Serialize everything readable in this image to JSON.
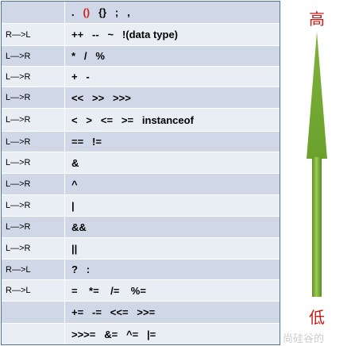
{
  "table": {
    "rows": [
      {
        "assoc": "",
        "pre": ".   ",
        "red": "()",
        "post": "   {}   ;   ,"
      },
      {
        "assoc": "R—>L",
        "ops": "++   --   ~   !(data type)"
      },
      {
        "assoc": "L—>R",
        "ops": "*   /   %"
      },
      {
        "assoc": "L—>R",
        "ops": "+   -"
      },
      {
        "assoc": "L—>R",
        "ops": "<<   >>   >>>"
      },
      {
        "assoc": "L—>R",
        "ops": "<   >   <=   >=   instanceof"
      },
      {
        "assoc": "L—>R",
        "ops": "==   !="
      },
      {
        "assoc": "L—>R",
        "ops": "&"
      },
      {
        "assoc": "L—>R",
        "ops": "^"
      },
      {
        "assoc": "L—>R",
        "ops": "|"
      },
      {
        "assoc": "L—>R",
        "ops": "&&"
      },
      {
        "assoc": "L—>R",
        "ops": "||"
      },
      {
        "assoc": "R—>L",
        "ops": "?   :"
      },
      {
        "assoc": "R—>L",
        "ops": "=    *=    /=    %="
      },
      {
        "assoc": "",
        "ops": "+=   -=   <<=   >>="
      },
      {
        "assoc": "",
        "ops": ">>>=   &=   ^=   |="
      }
    ]
  },
  "priority": {
    "high_label": "高",
    "low_label": "低",
    "arrow_color": "#7fb23a",
    "label_color": "#c51b14"
  },
  "watermark": "尚硅谷的"
}
